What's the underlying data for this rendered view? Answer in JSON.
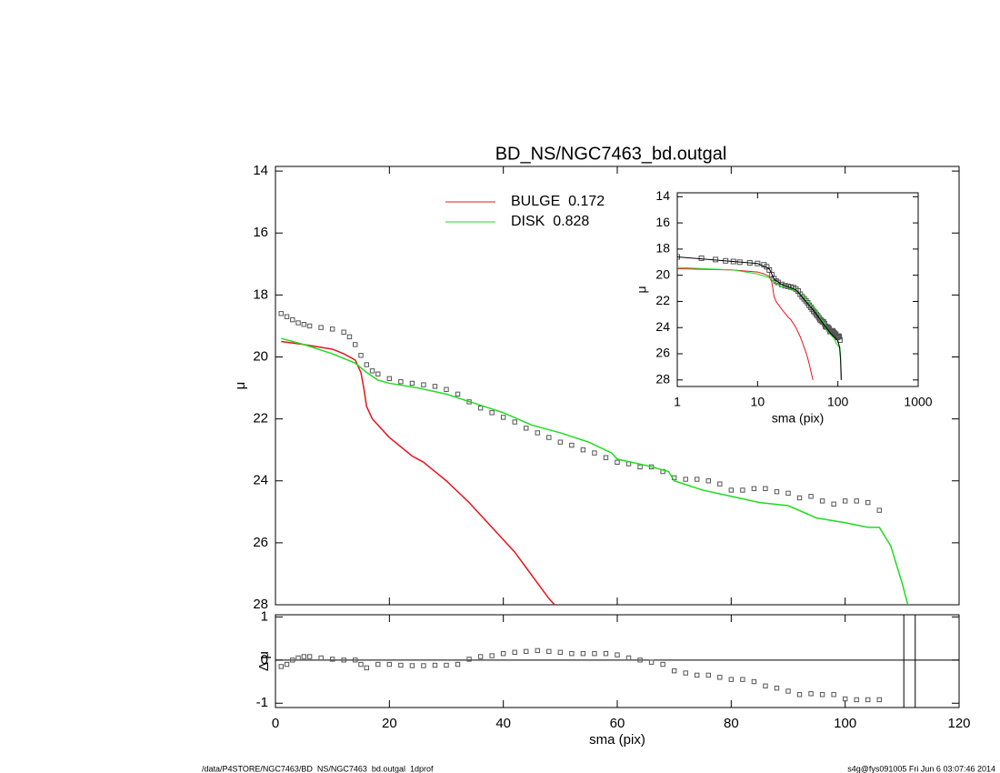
{
  "chart_data": [
    {
      "type": "line",
      "title": "BD_NS/NGC7463_bd.outgal",
      "ylabel": "μ",
      "yreverse": true,
      "xlim": [
        0,
        120
      ],
      "xticks": [
        0,
        20,
        40,
        60,
        80,
        100,
        120
      ],
      "ylim": [
        13.85,
        28
      ],
      "yticks": [
        14,
        16,
        18,
        20,
        22,
        24,
        26,
        28
      ],
      "legend": "top",
      "series": [
        {
          "mode": "markers",
          "color": "#555555",
          "x": [
            1,
            2,
            3,
            4,
            5,
            6,
            8,
            10,
            12,
            13,
            14,
            15,
            16,
            17,
            18,
            20,
            22,
            24,
            26,
            28,
            30,
            32,
            34,
            36,
            38,
            40,
            42,
            44,
            46,
            48,
            50,
            52,
            54,
            56,
            58,
            60,
            62,
            64,
            66,
            68,
            70,
            72,
            74,
            76,
            78,
            80,
            82,
            84,
            86,
            88,
            90,
            92,
            94,
            96,
            98,
            100,
            102,
            104,
            106
          ],
          "values": [
            18.6,
            18.7,
            18.8,
            18.9,
            18.95,
            19.0,
            19.05,
            19.1,
            19.2,
            19.35,
            19.6,
            19.95,
            20.25,
            20.45,
            20.55,
            20.7,
            20.8,
            20.85,
            20.9,
            20.95,
            21.05,
            21.2,
            21.45,
            21.65,
            21.8,
            21.95,
            22.1,
            22.3,
            22.45,
            22.6,
            22.75,
            22.85,
            23.0,
            23.1,
            23.25,
            23.4,
            23.45,
            23.55,
            23.55,
            23.7,
            23.9,
            23.95,
            23.95,
            24.0,
            24.1,
            24.3,
            24.3,
            24.25,
            24.25,
            24.35,
            24.4,
            24.55,
            24.5,
            24.65,
            24.75,
            24.65,
            24.65,
            24.7,
            24.95
          ]
        },
        {
          "mode": "lines",
          "name": "BULGE  0.172",
          "color": "#e8141c",
          "x": [
            1,
            5,
            10,
            12,
            14,
            15,
            15.5,
            16,
            17,
            20,
            24,
            26,
            28,
            30,
            34,
            36,
            40,
            42,
            44,
            46,
            48,
            49
          ],
          "values": [
            19.5,
            19.6,
            19.75,
            19.9,
            20.1,
            20.5,
            21.0,
            21.6,
            22.0,
            22.6,
            23.2,
            23.4,
            23.7,
            24.0,
            24.7,
            25.1,
            25.9,
            26.3,
            26.8,
            27.3,
            27.8,
            28.0
          ]
        },
        {
          "mode": "lines",
          "name": "DISK  0.828",
          "color": "#1edc1e",
          "x": [
            1,
            5,
            10,
            14,
            16,
            18,
            20,
            25,
            30,
            35,
            40,
            45,
            50,
            55,
            59,
            60,
            65,
            69,
            70,
            75,
            80,
            85,
            90,
            95,
            100,
            104,
            106,
            108,
            110,
            111
          ],
          "values": [
            19.4,
            19.6,
            19.9,
            20.2,
            20.5,
            20.75,
            20.85,
            21.0,
            21.2,
            21.5,
            21.8,
            22.2,
            22.45,
            22.75,
            23.1,
            23.3,
            23.5,
            23.7,
            24.0,
            24.3,
            24.5,
            24.7,
            24.8,
            25.2,
            25.35,
            25.5,
            25.5,
            26.1,
            27.3,
            28.0
          ]
        }
      ]
    },
    {
      "type": "line",
      "ylabel": "Δ μ",
      "xlabel": "sma (pix)",
      "xlim": [
        0,
        120
      ],
      "xticks": [
        0,
        20,
        40,
        60,
        80,
        100,
        120
      ],
      "ylim": [
        -1.1,
        1.05
      ],
      "yticks": [
        -1,
        0,
        1
      ],
      "hlines": [
        0
      ],
      "vlines": [
        110.3,
        112.3
      ],
      "series": [
        {
          "mode": "markers",
          "color": "#555555",
          "x": [
            1,
            2,
            3,
            4,
            5,
            6,
            8,
            10,
            12,
            14,
            15,
            16,
            18,
            20,
            22,
            24,
            26,
            28,
            30,
            32,
            34,
            36,
            38,
            40,
            42,
            44,
            46,
            48,
            50,
            52,
            54,
            56,
            58,
            60,
            62,
            64,
            66,
            68,
            70,
            72,
            74,
            76,
            78,
            80,
            82,
            84,
            86,
            88,
            90,
            92,
            94,
            96,
            98,
            100,
            102,
            104,
            106
          ],
          "values": [
            -0.15,
            -0.1,
            0.0,
            0.05,
            0.08,
            0.08,
            0.05,
            0.02,
            0.0,
            0.0,
            -0.1,
            -0.18,
            -0.1,
            -0.1,
            -0.12,
            -0.13,
            -0.13,
            -0.12,
            -0.12,
            -0.1,
            0.02,
            0.08,
            0.1,
            0.15,
            0.18,
            0.2,
            0.22,
            0.2,
            0.18,
            0.15,
            0.15,
            0.15,
            0.15,
            0.12,
            0.05,
            0.0,
            -0.05,
            -0.1,
            -0.25,
            -0.3,
            -0.35,
            -0.35,
            -0.4,
            -0.45,
            -0.45,
            -0.5,
            -0.6,
            -0.65,
            -0.72,
            -0.8,
            -0.78,
            -0.8,
            -0.8,
            -0.9,
            -0.92,
            -0.92,
            -0.92
          ]
        }
      ]
    },
    {
      "type": "line",
      "xlog": true,
      "ylabel": "μ",
      "xlabel": "sma (pix)",
      "yreverse": true,
      "overlay": 0,
      "xlim": [
        1,
        1000
      ],
      "xticks": [
        1,
        10,
        100,
        1000
      ],
      "ylim": [
        13.7,
        28.5
      ],
      "yticks": [
        14,
        16,
        18,
        20,
        22,
        24,
        26,
        28
      ],
      "series": [
        {
          "mode": "lines",
          "color": "#000000",
          "x": [
            1,
            10,
            14,
            16,
            20,
            30,
            50,
            80,
            100,
            105,
            108,
            110
          ],
          "values": [
            18.6,
            19.1,
            19.5,
            20.3,
            20.7,
            21.1,
            22.7,
            24.4,
            25.0,
            25.5,
            26.5,
            28.0
          ]
        }
      ]
    }
  ],
  "footer": {
    "left": "/data/P4STORE/NGC7463/BD_NS/NGC7463_bd.outgal_1dprof",
    "right": "s4g@fys091005  Fri Jun  6 03:07:46 2014"
  }
}
